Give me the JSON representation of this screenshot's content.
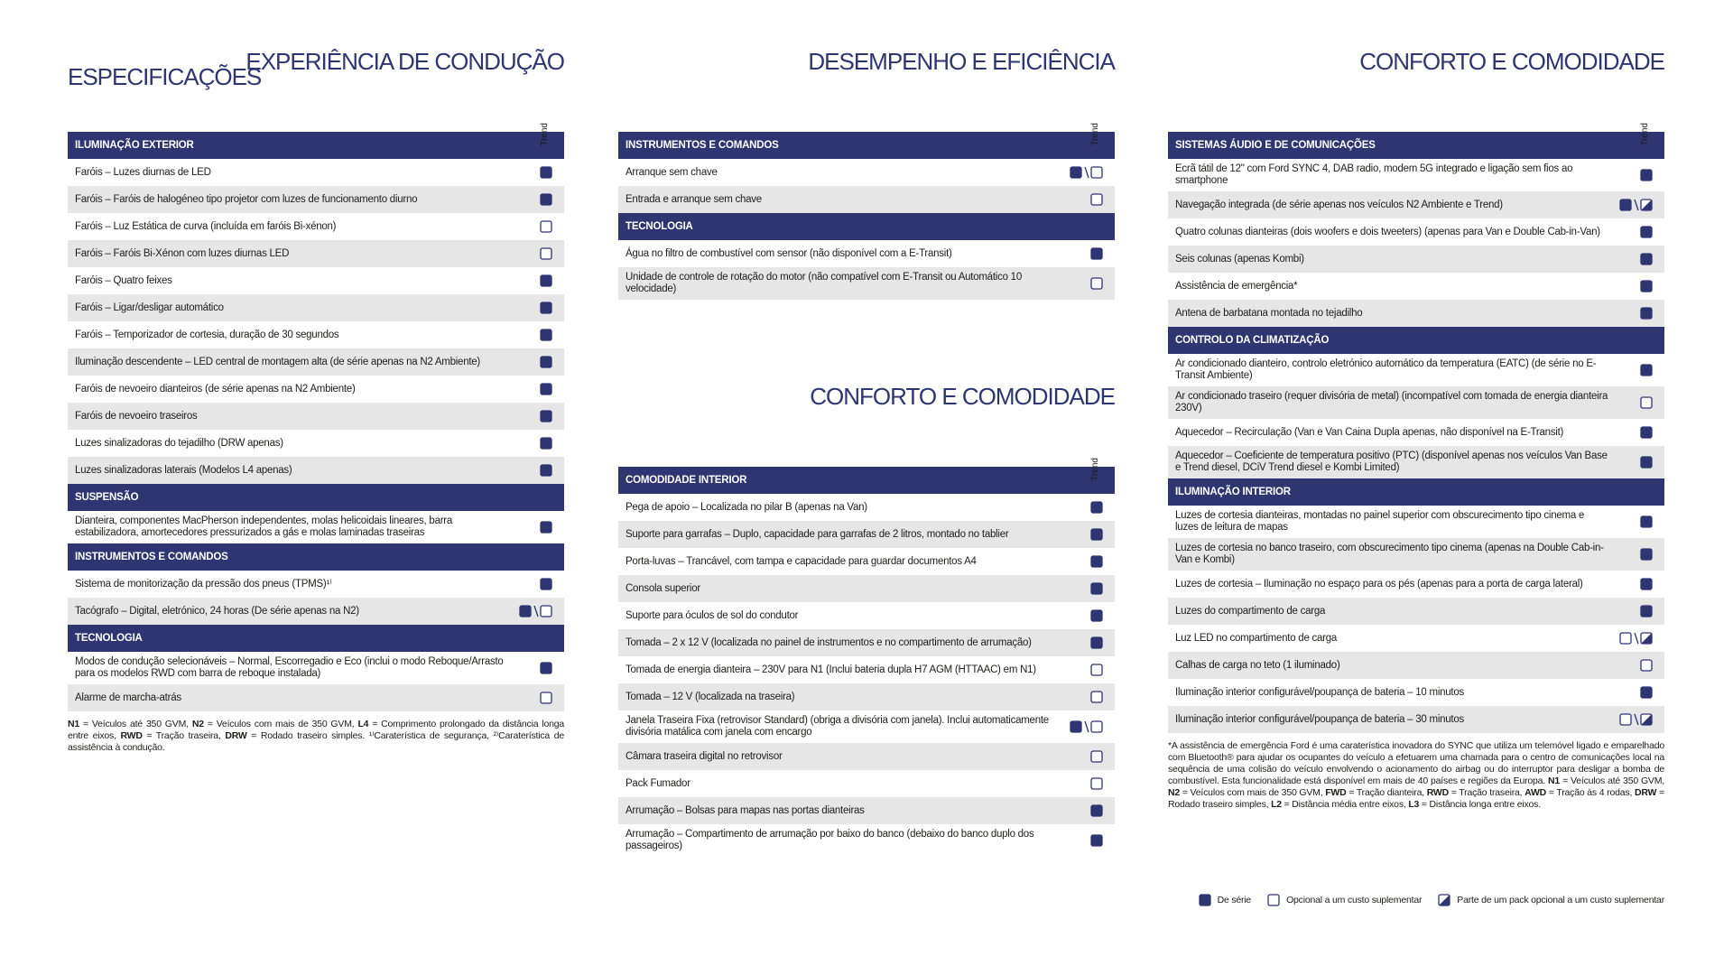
{
  "tab": "ESPECIFICAÇÕES",
  "panels": [
    {
      "title": "EXPERIÊNCIA DE CONDUÇÃO",
      "trim": "Trend",
      "sections": [
        {
          "heading": "ILUMINAÇÃO EXTERIOR",
          "rows": [
            {
              "text": "Faróis – Luzes diurnas de LED",
              "mark": "S"
            },
            {
              "text": "Faróis – Faróis de halogéneo tipo projetor com luzes de funcionamento diurno",
              "mark": "S"
            },
            {
              "text": "Faróis – Luz Estática de curva (incluída em faróis Bi-xénon)",
              "mark": "O"
            },
            {
              "text": "Faróis – Faróis Bi-Xénon com luzes diurnas LED",
              "mark": "O"
            },
            {
              "text": "Faróis – Quatro feixes",
              "mark": "S"
            },
            {
              "text": "Faróis – Ligar/desligar automático",
              "mark": "S"
            },
            {
              "text": "Faróis – Temporizador de cortesia, duração de 30 segundos",
              "mark": "S"
            },
            {
              "text": "Iluminação descendente – LED central de montagem alta (de série apenas na N2 Ambiente)",
              "mark": "S"
            },
            {
              "text": "Faróis de nevoeiro dianteiros (de série apenas na N2 Ambiente)",
              "mark": "S"
            },
            {
              "text": "Faróis de nevoeiro traseiros",
              "mark": "S"
            },
            {
              "text": "Luzes sinalizadoras do tejadilho (DRW apenas)",
              "mark": "S"
            },
            {
              "text": "Luzes sinalizadoras laterais (Modelos L4 apenas)",
              "mark": "S"
            }
          ]
        },
        {
          "heading": "SUSPENSÃO",
          "rows": [
            {
              "text": "Dianteira, componentes MacPherson independentes, molas helicoidais lineares, barra estabilizadora, amortecedores pressurizados a gás e molas laminadas traseiras",
              "mark": "S"
            }
          ]
        },
        {
          "heading": "INSTRUMENTOS E COMANDOS",
          "rows": [
            {
              "text": "Sistema de monitorização da pressão dos pneus (TPMS)¹⁾",
              "mark": "S"
            },
            {
              "text": "Tacógrafo – Digital, eletrónico, 24 horas (De série apenas na N2)",
              "mark": "S/O"
            }
          ]
        },
        {
          "heading": "TECNOLOGIA",
          "rows": [
            {
              "text": "Modos de condução selecionáveis – Normal, Escorregadio e Eco (inclui o modo Reboque/Arrasto para os modelos RWD com barra de reboque instalada)",
              "mark": "S"
            },
            {
              "text": "Alarme de marcha-atrás",
              "mark": "O"
            }
          ]
        }
      ],
      "footnote": [
        {
          "text": "N1",
          "bold": true
        },
        {
          "text": " = Veículos até 350 GVM, ",
          "bold": false
        },
        {
          "text": "N2",
          "bold": true
        },
        {
          "text": " = Veículos com mais de 350 GVM, ",
          "bold": false
        },
        {
          "text": "L4",
          "bold": true
        },
        {
          "text": " = Comprimento prolongado da distância longa entre eixos, ",
          "bold": false
        },
        {
          "text": "RWD",
          "bold": true
        },
        {
          "text": " = Tração traseira, ",
          "bold": false
        },
        {
          "text": "DRW",
          "bold": true
        },
        {
          "text": " = Rodado traseiro simples. ¹⁾Caraterística de segurança, ²⁾Caraterística de assistência à condução.",
          "bold": false
        }
      ]
    },
    {
      "title": "DESEMPENHO E EFICIÊNCIA",
      "trim": "Trend",
      "sections": [
        {
          "heading": "INSTRUMENTOS E COMANDOS",
          "rows": [
            {
              "text": "Arranque sem chave",
              "mark": "S/O"
            },
            {
              "text": "Entrada e arranque sem chave",
              "mark": "O"
            }
          ]
        },
        {
          "heading": "TECNOLOGIA",
          "rows": [
            {
              "text": "Água no filtro de combustível com sensor (não disponível com a E-Transit)",
              "mark": "S"
            },
            {
              "text": "Unidade de controle de rotação do motor (não compatível com E-Transit ou Automático 10 velocidade)",
              "mark": "O"
            }
          ]
        }
      ]
    },
    {
      "title": "CONFORTO E COMODIDADE",
      "trim": "Trend",
      "sections": [
        {
          "heading": "COMODIDADE INTERIOR",
          "rows": [
            {
              "text": "Pega de apoio – Localizada no pilar B (apenas na Van)",
              "mark": "S"
            },
            {
              "text": "Suporte para garrafas – Duplo, capacidade para garrafas de 2 litros, montado no tablier",
              "mark": "S"
            },
            {
              "text": "Porta-luvas – Trancável, com tampa e capacidade para guardar documentos A4",
              "mark": "S"
            },
            {
              "text": "Consola superior",
              "mark": "S"
            },
            {
              "text": "Suporte para óculos de sol do condutor",
              "mark": "S"
            },
            {
              "text": "Tomada – 2 x 12 V (localizada no painel de instrumentos e no compartimento de arrumação)",
              "mark": "S"
            },
            {
              "text": "Tomada de energia dianteira – 230V para N1 (Inclui bateria dupla H7 AGM (HTTAAC) em N1)",
              "mark": "O"
            },
            {
              "text": "Tomada – 12 V (localizada na traseira)",
              "mark": "O"
            },
            {
              "text": "Janela Traseira Fixa (retrovisor Standard) (obriga a divisória com janela). Inclui automaticamente divisória matálica com janela com encargo",
              "mark": "S/O"
            },
            {
              "text": "Câmara traseira digital no retrovisor",
              "mark": "O"
            },
            {
              "text": "Pack Fumador",
              "mark": "O"
            },
            {
              "text": "Arrumação – Bolsas para mapas nas portas dianteiras",
              "mark": "S"
            },
            {
              "text": "Arrumação – Compartimento de arrumação por baixo do banco (debaixo do banco duplo dos passageiros)",
              "mark": "S"
            }
          ]
        }
      ]
    },
    {
      "title": "CONFORTO E COMODIDADE",
      "trim": "Trend",
      "sections": [
        {
          "heading": "SISTEMAS ÁUDIO E DE COMUNICAÇÕES",
          "rows": [
            {
              "text": "Ecrã tátil de 12\" com Ford SYNC 4, DAB radio, modem 5G integrado e ligação sem fios ao smartphone",
              "mark": "S"
            },
            {
              "text": "Navegação integrada (de série apenas nos veículos N2 Ambiente e Trend)",
              "mark": "S/P"
            },
            {
              "text": "Quatro colunas dianteiras (dois woofers e dois tweeters) (apenas para Van e Double Cab-in-Van)",
              "mark": "S"
            },
            {
              "text": "Seis colunas (apenas Kombi)",
              "mark": "S"
            },
            {
              "text": "Assistência de emergência*",
              "mark": "S"
            },
            {
              "text": "Antena de barbatana montada no tejadilho",
              "mark": "S"
            }
          ]
        },
        {
          "heading": "CONTROLO DA CLIMATIZAÇÃO",
          "rows": [
            {
              "text": "Ar condicionado dianteiro, controlo eletrónico automático da temperatura (EATC) (de série no E-Transit Ambiente)",
              "mark": "S"
            },
            {
              "text": "Ar condicionado traseiro (requer divisória de metal) (incompatível com tomada de energia dianteira 230V)",
              "mark": "O"
            },
            {
              "text": "Aquecedor – Recirculação (Van e Van Caina Dupla apenas, não disponível na E-Transit)",
              "mark": "S"
            },
            {
              "text": "Aquecedor – Coeficiente de temperatura positivo (PTC) (disponível apenas nos veículos Van Base e Trend diesel, DCiV Trend diesel e Kombi Limited)",
              "mark": "S"
            }
          ]
        },
        {
          "heading": "ILUMINAÇÃO INTERIOR",
          "rows": [
            {
              "text": "Luzes de cortesia dianteiras, montadas no painel superior com obscurecimento tipo cinema e luzes de leitura de mapas",
              "mark": "S"
            },
            {
              "text": "Luzes de cortesia no banco traseiro, com obscurecimento tipo cinema (apenas na Double Cab-in-Van e Kombi)",
              "mark": "S"
            },
            {
              "text": "Luzes de cortesia – Iluminação no espaço para os pés (apenas para a porta de carga lateral)",
              "mark": "S"
            },
            {
              "text": "Luzes do compartimento de carga",
              "mark": "S"
            },
            {
              "text": "Luz LED no compartimento de carga",
              "mark": "O/P"
            },
            {
              "text": "Calhas de carga no teto (1 iluminado)",
              "mark": "O"
            },
            {
              "text": "Iluminação interior configurável/poupança de bateria – 10 minutos",
              "mark": "S"
            },
            {
              "text": "Iluminação interior configurável/poupança de bateria – 30 minutos",
              "mark": "O/P"
            }
          ]
        }
      ],
      "footnote": [
        {
          "text": "*A assistência de emergência Ford é uma caraterística inovadora do SYNC que utiliza um telemóvel ligado e emparelhado com Bluetooth® para ajudar os ocupantes do veículo a efetuarem uma chamada para o centro de comunicações local na sequência de uma colisão do veículo envolvendo o acionamento do airbag ou do interruptor para desligar a bomba de combustível. Esta funcionalidade está disponível em mais de 40 países e regiões da Europa. ",
          "bold": false
        },
        {
          "text": "N1",
          "bold": true
        },
        {
          "text": " = Veículos até 350 GVM, ",
          "bold": false
        },
        {
          "text": "N2",
          "bold": true
        },
        {
          "text": " = Veículos com mais de 350 GVM, ",
          "bold": false
        },
        {
          "text": "FWD",
          "bold": true
        },
        {
          "text": " = Tração dianteira, ",
          "bold": false
        },
        {
          "text": "RWD",
          "bold": true
        },
        {
          "text": " = Tração traseira, ",
          "bold": false
        },
        {
          "text": "AWD",
          "bold": true
        },
        {
          "text": " = Tração às 4 rodas, ",
          "bold": false
        },
        {
          "text": "DRW",
          "bold": true
        },
        {
          "text": " = Rodado traseiro simples, ",
          "bold": false
        },
        {
          "text": "L2",
          "bold": true
        },
        {
          "text": " = Distância média entre eixos, ",
          "bold": false
        },
        {
          "text": "L3",
          "bold": true
        },
        {
          "text": " = Distância longa entre eixos.",
          "bold": false
        }
      ]
    }
  ],
  "legend": [
    {
      "mark": "S",
      "text": "De série"
    },
    {
      "mark": "O",
      "text": "Opcional a um custo suplementar"
    },
    {
      "mark": "P",
      "text": "Parte de um pack opcional a um custo suplementar"
    }
  ]
}
